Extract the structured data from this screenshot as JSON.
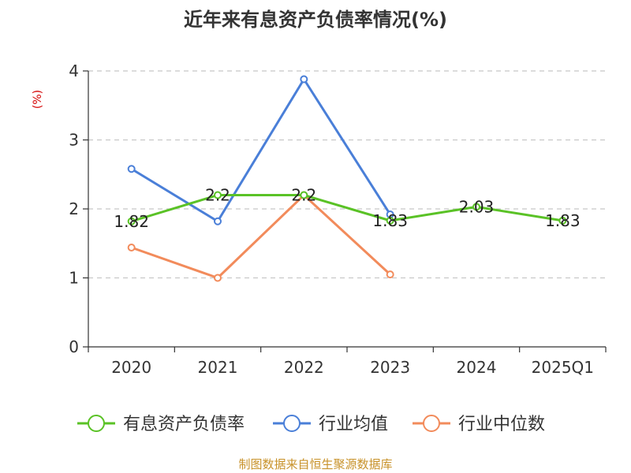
{
  "chart_data": {
    "type": "line",
    "title": "近年来有息资产负债率情况(%)",
    "ylabel": "(%)",
    "xlabel": "",
    "categories": [
      "2020",
      "2021",
      "2022",
      "2023",
      "2024",
      "2025Q1"
    ],
    "ylim": [
      0,
      4
    ],
    "yticks": [
      "0",
      "1",
      "2",
      "3",
      "4"
    ],
    "grid": true,
    "legend_position": "bottom",
    "series": [
      {
        "name": "有息资产负债率",
        "color": "#5ac226",
        "values": [
          1.82,
          2.2,
          2.2,
          1.83,
          2.03,
          1.83
        ],
        "labels": [
          "1.82",
          "2.2",
          "2.2",
          "1.83",
          "2.03",
          "1.83"
        ]
      },
      {
        "name": "行业均值",
        "color": "#4a7fd8",
        "values": [
          2.58,
          1.82,
          3.88,
          1.92,
          null,
          null
        ]
      },
      {
        "name": "行业中位数",
        "color": "#f28b5b",
        "values": [
          1.44,
          1.0,
          2.2,
          1.05,
          null,
          null
        ]
      }
    ],
    "source": "制图数据来自恒生聚源数据库"
  }
}
